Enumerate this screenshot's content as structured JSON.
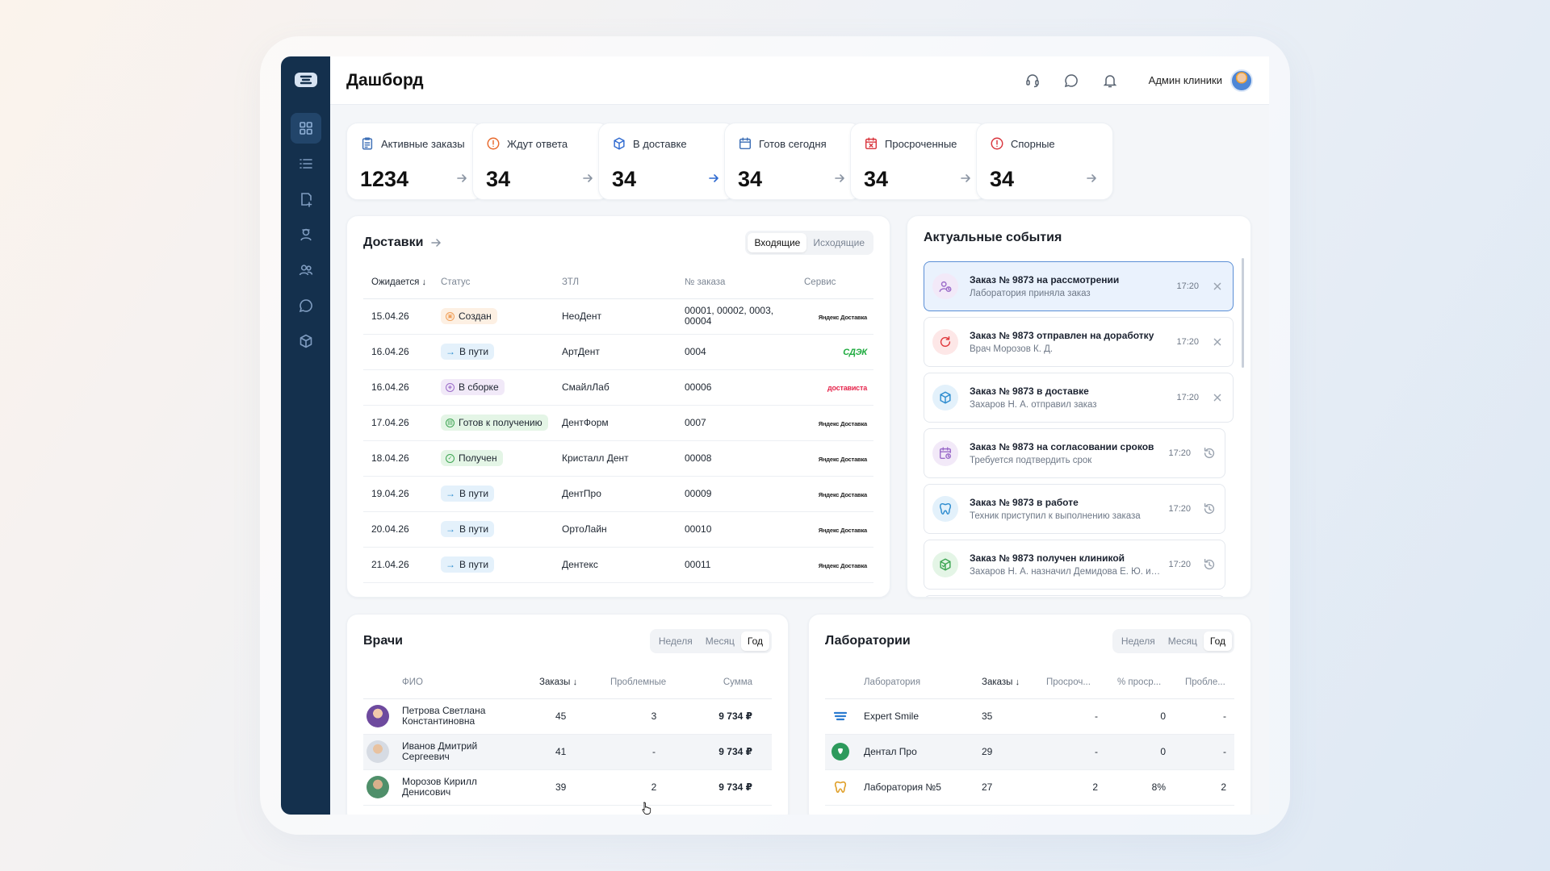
{
  "header": {
    "title": "Дашборд",
    "user_name": "Админ клиники"
  },
  "stats": [
    {
      "label": "Активные заказы",
      "value": "1234",
      "icon": "clipboard-icon",
      "color": "#3d6fb6"
    },
    {
      "label": "Ждут ответа",
      "value": "34",
      "icon": "alert-circle-icon",
      "color": "#e8692c"
    },
    {
      "label": "В доставке",
      "value": "34",
      "icon": "box-icon",
      "color": "#2f6ad0"
    },
    {
      "label": "Готов сегодня",
      "value": "34",
      "icon": "calendar-icon",
      "color": "#3d6fb6"
    },
    {
      "label": "Просроченные",
      "value": "34",
      "icon": "calendar-x-icon",
      "color": "#d9363e"
    },
    {
      "label": "Спорные",
      "value": "34",
      "icon": "alert-circle-icon",
      "color": "#d9363e"
    }
  ],
  "deliveries": {
    "title": "Доставки",
    "tabs": [
      "Входящие",
      "Исходящие"
    ],
    "columns": [
      "Ожидается",
      "Статус",
      "ЗТЛ",
      "№ заказа",
      "Сервис"
    ],
    "rows": [
      {
        "date": "15.04.26",
        "status": "Создан",
        "lab": "НеоДент",
        "order": "00001, 00002, 0003, 00004",
        "service": "Яндекс Доставка"
      },
      {
        "date": "16.04.26",
        "status": "В пути",
        "lab": "АртДент",
        "order": "0004",
        "service": "СДЭК"
      },
      {
        "date": "16.04.26",
        "status": "В сборке",
        "lab": "СмайлЛаб",
        "order": "00006",
        "service": "достависта"
      },
      {
        "date": "17.04.26",
        "status": "Готов к получению",
        "lab": "ДентФорм",
        "order": "0007",
        "service": "Яндекс Доставка"
      },
      {
        "date": "18.04.26",
        "status": "Получен",
        "lab": "Кристалл Дент",
        "order": "00008",
        "service": "Яндекс Доставка"
      },
      {
        "date": "19.04.26",
        "status": "В пути",
        "lab": "ДентПро",
        "order": "00009",
        "service": "Яндекс Доставка"
      },
      {
        "date": "20.04.26",
        "status": "В пути",
        "lab": "ОртоЛайн",
        "order": "00010",
        "service": "Яндекс Доставка"
      },
      {
        "date": "21.04.26",
        "status": "В пути",
        "lab": "Дентекс",
        "order": "00011",
        "service": "Яндекс Доставка"
      }
    ]
  },
  "events": {
    "title": "Актуальные события",
    "items": [
      {
        "title": "Заказ № 9873 на рассмотрении",
        "sub": "Лаборатория приняла заказ",
        "time": "17:20",
        "icon": "user-clock-icon",
        "action": "close"
      },
      {
        "title": "Заказ № 9873 отправлен на доработку",
        "sub": "Врач Морозов К. Д.",
        "time": "17:20",
        "icon": "refresh-icon",
        "action": "close"
      },
      {
        "title": "Заказ № 9873 в доставке",
        "sub": "Захаров Н. А. отправил заказ",
        "time": "17:20",
        "icon": "box-icon",
        "action": "close"
      },
      {
        "title": "Заказ № 9873 на согласовании сроков",
        "sub": "Требуется подтвердить срок",
        "time": "17:20",
        "icon": "calendar-clock-icon",
        "action": "history"
      },
      {
        "title": "Заказ № 9873 в работе",
        "sub": "Техник приступил к выполнению заказа",
        "time": "17:20",
        "icon": "tooth-icon",
        "action": "history"
      },
      {
        "title": "Заказ № 9873 получен клиникой",
        "sub": "Захаров Н. А. назначил Демидова Е. Ю. ис...",
        "time": "17:20",
        "icon": "box-check-icon",
        "action": "history"
      }
    ]
  },
  "doctors": {
    "title": "Врачи",
    "tabs": [
      "Неделя",
      "Месяц",
      "Год"
    ],
    "columns": [
      "ФИО",
      "Заказы",
      "Проблемные",
      "Сумма"
    ],
    "rows": [
      {
        "name": "Петрова Светлана Константиновна",
        "orders": "45",
        "problems": "3",
        "sum": "9 734 ₽"
      },
      {
        "name": "Иванов Дмитрий Сергеевич",
        "orders": "41",
        "problems": "-",
        "sum": "9 734 ₽"
      },
      {
        "name": "Морозов Кирилл Денисович",
        "orders": "39",
        "problems": "2",
        "sum": "9 734 ₽"
      }
    ]
  },
  "labs": {
    "title": "Лаборатории",
    "tabs": [
      "Неделя",
      "Месяц",
      "Год"
    ],
    "columns": [
      "Лаборатория",
      "Заказы",
      "Просроч...",
      "% проср...",
      "Пробле..."
    ],
    "rows": [
      {
        "name": "Expert Smile",
        "orders": "35",
        "overdue": "-",
        "pct": "0",
        "problems": "-"
      },
      {
        "name": "Дентал Про",
        "orders": "29",
        "overdue": "-",
        "pct": "0",
        "problems": "-"
      },
      {
        "name": "Лаборатория №5",
        "orders": "27",
        "overdue": "2",
        "pct": "8%",
        "problems": "2"
      }
    ]
  }
}
